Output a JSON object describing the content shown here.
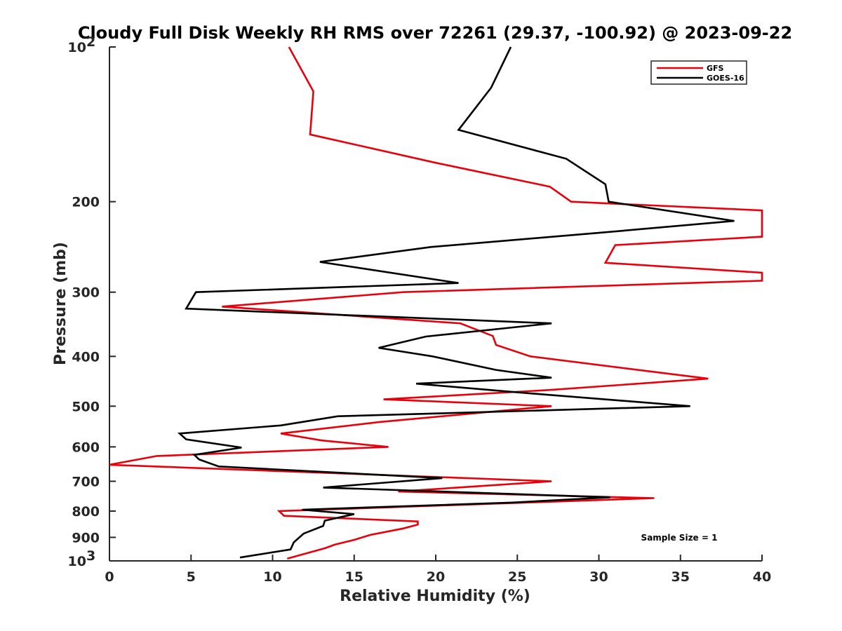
{
  "chart_data": {
    "type": "line",
    "title": "Cloudy Full Disk Weekly RH RMS over 72261 (29.37, -100.92) @ 2023-09-22",
    "xlabel": "Relative Humidity (%)",
    "ylabel": "Pressure (mb)",
    "xlim": [
      0,
      40
    ],
    "ylim": [
      100,
      1000
    ],
    "yscale": "log",
    "y_reversed": true,
    "grid": false,
    "legend_position": "top-right",
    "x_ticks": [
      "0",
      "5",
      "10",
      "15",
      "20",
      "25",
      "30",
      "35",
      "40"
    ],
    "y_ticks": [
      {
        "value": 100,
        "label": "10",
        "exp": "2"
      },
      {
        "value": 200,
        "label": "200"
      },
      {
        "value": 300,
        "label": "300"
      },
      {
        "value": 400,
        "label": "400"
      },
      {
        "value": 500,
        "label": "500"
      },
      {
        "value": 600,
        "label": "600"
      },
      {
        "value": 700,
        "label": "700"
      },
      {
        "value": 800,
        "label": "800"
      },
      {
        "value": 900,
        "label": "900"
      },
      {
        "value": 1000,
        "label": "10",
        "exp": "3"
      }
    ],
    "annotation": "Sample Size = 1",
    "series": [
      {
        "name": "GFS",
        "color": "#e8000b",
        "points": [
          [
            11.0,
            100
          ],
          [
            12.5,
            122
          ],
          [
            12.3,
            148
          ],
          [
            20.0,
            168
          ],
          [
            27.0,
            187
          ],
          [
            28.3,
            200
          ],
          [
            40.5,
            208
          ],
          [
            40.5,
            234
          ],
          [
            31.0,
            243
          ],
          [
            30.4,
            263
          ],
          [
            40.5,
            275
          ],
          [
            40.5,
            285
          ],
          [
            18.0,
            300
          ],
          [
            6.9,
            320
          ],
          [
            21.5,
            345
          ],
          [
            23.5,
            365
          ],
          [
            23.7,
            380
          ],
          [
            25.8,
            400
          ],
          [
            36.7,
            442
          ],
          [
            27.0,
            465
          ],
          [
            16.8,
            485
          ],
          [
            27.1,
            500
          ],
          [
            16.5,
            537
          ],
          [
            10.5,
            565
          ],
          [
            13.0,
            583
          ],
          [
            17.1,
            600
          ],
          [
            2.9,
            625
          ],
          [
            0.0,
            650
          ],
          [
            27.1,
            700
          ],
          [
            17.7,
            733
          ],
          [
            33.4,
            755
          ],
          [
            10.4,
            800
          ],
          [
            10.7,
            817
          ],
          [
            18.9,
            838
          ],
          [
            18.9,
            850
          ],
          [
            18.0,
            865
          ],
          [
            16.0,
            890
          ],
          [
            15.0,
            910
          ],
          [
            13.8,
            930
          ],
          [
            13.2,
            945
          ],
          [
            10.9,
            990
          ]
        ]
      },
      {
        "name": "GOES-16",
        "color": "#000000",
        "points": [
          [
            24.6,
            100
          ],
          [
            23.4,
            120
          ],
          [
            21.4,
            145
          ],
          [
            28.0,
            165
          ],
          [
            30.4,
            185
          ],
          [
            30.6,
            200
          ],
          [
            38.3,
            218
          ],
          [
            30.0,
            230
          ],
          [
            19.7,
            245
          ],
          [
            12.9,
            262
          ],
          [
            21.4,
            288
          ],
          [
            5.3,
            300
          ],
          [
            4.7,
            323
          ],
          [
            27.1,
            345
          ],
          [
            19.4,
            366
          ],
          [
            16.5,
            385
          ],
          [
            19.8,
            400
          ],
          [
            23.7,
            425
          ],
          [
            27.1,
            440
          ],
          [
            18.8,
            452
          ],
          [
            25.0,
            470
          ],
          [
            35.6,
            500
          ],
          [
            14.0,
            523
          ],
          [
            10.5,
            545
          ],
          [
            4.3,
            565
          ],
          [
            4.7,
            580
          ],
          [
            8.1,
            602
          ],
          [
            5.2,
            622
          ],
          [
            5.5,
            635
          ],
          [
            6.7,
            655
          ],
          [
            20.4,
            690
          ],
          [
            13.1,
            720
          ],
          [
            30.7,
            752
          ],
          [
            24.7,
            770
          ],
          [
            11.8,
            795
          ],
          [
            15.0,
            811
          ],
          [
            13.2,
            835
          ],
          [
            13.1,
            855
          ],
          [
            11.9,
            885
          ],
          [
            11.3,
            920
          ],
          [
            11.1,
            950
          ],
          [
            8.0,
            985
          ]
        ]
      }
    ]
  }
}
